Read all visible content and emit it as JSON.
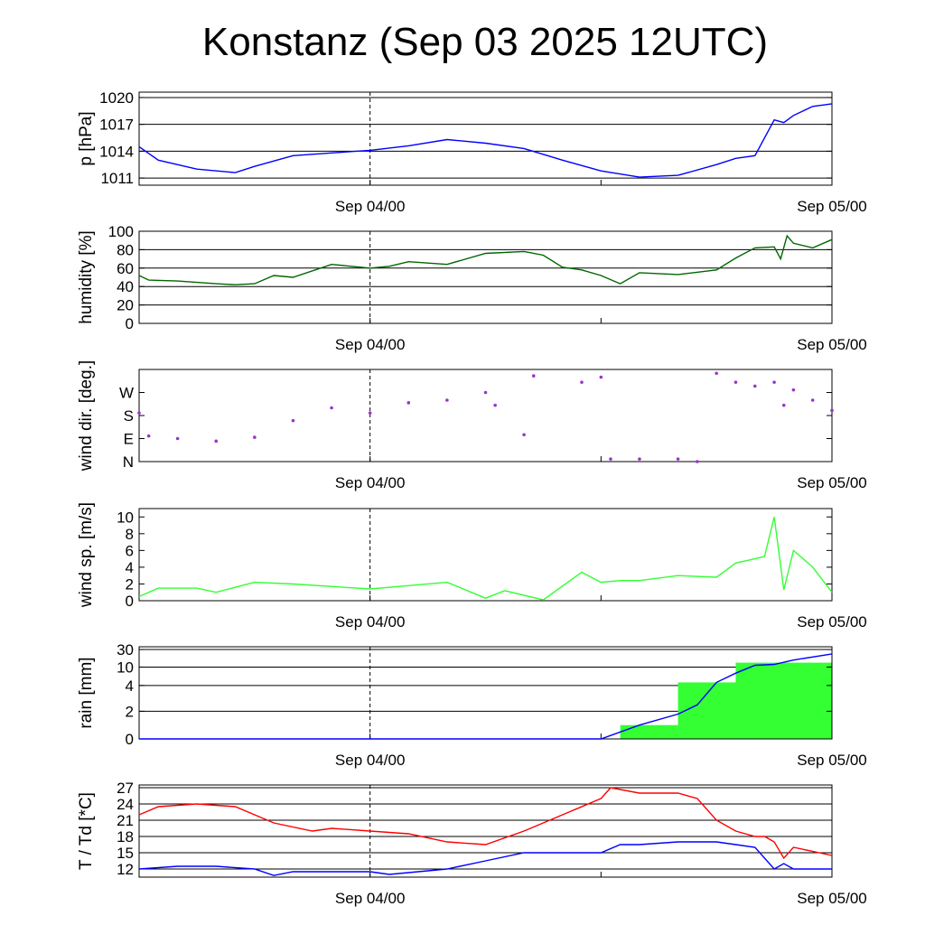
{
  "title": "Konstanz (Sep 03 2025 12UTC)",
  "x_axis": {
    "start": "2025-09-03 12:00",
    "end": "2025-09-05 00:00",
    "tick_labels": [
      "Sep 04/00",
      "Sep 05/00"
    ],
    "tick_times": [
      "2025-09-04 00:00",
      "2025-09-05 00:00"
    ],
    "minor_tick_times": [
      "2025-09-04 12:00"
    ],
    "dashed_line_at": "2025-09-04 00:00"
  },
  "chart_data": [
    {
      "type": "line",
      "id": "pressure",
      "ylabel": "p [hPa]",
      "ylim": [
        1010.2,
        1020.6
      ],
      "yticks": [
        1011,
        1014,
        1017,
        1020
      ],
      "grid": true,
      "series": [
        {
          "color": "#0000ff",
          "x": [
            "2025-09-03 12:00",
            "2025-09-03 13:00",
            "2025-09-03 15:00",
            "2025-09-03 17:00",
            "2025-09-03 18:00",
            "2025-09-03 20:00",
            "2025-09-03 22:00",
            "2025-09-04 00:00",
            "2025-09-04 02:00",
            "2025-09-04 04:00",
            "2025-09-04 06:00",
            "2025-09-04 08:00",
            "2025-09-04 10:00",
            "2025-09-04 12:00",
            "2025-09-04 14:00",
            "2025-09-04 16:00",
            "2025-09-04 18:00",
            "2025-09-04 19:00",
            "2025-09-04 20:00",
            "2025-09-04 21:00",
            "2025-09-04 21:30",
            "2025-09-04 22:00",
            "2025-09-04 23:00",
            "2025-09-05 00:00"
          ],
          "y": [
            1014.5,
            1013.0,
            1012.0,
            1011.6,
            1012.3,
            1013.5,
            1013.8,
            1014.1,
            1014.6,
            1015.3,
            1014.9,
            1014.3,
            1013.0,
            1011.8,
            1011.1,
            1011.3,
            1012.5,
            1013.2,
            1013.5,
            1017.5,
            1017.2,
            1018.0,
            1019.0,
            1019.3
          ]
        }
      ]
    },
    {
      "type": "line",
      "id": "humidity",
      "ylabel": "humidity [%]",
      "ylim": [
        0,
        100
      ],
      "yticks": [
        0,
        20,
        40,
        60,
        80,
        100
      ],
      "grid": true,
      "series": [
        {
          "color": "#006600",
          "x": [
            "2025-09-03 12:00",
            "2025-09-03 12:30",
            "2025-09-03 14:00",
            "2025-09-03 16:00",
            "2025-09-03 17:00",
            "2025-09-03 18:00",
            "2025-09-03 19:00",
            "2025-09-03 20:00",
            "2025-09-03 22:00",
            "2025-09-04 00:00",
            "2025-09-04 01:00",
            "2025-09-04 02:00",
            "2025-09-04 04:00",
            "2025-09-04 06:00",
            "2025-09-04 08:00",
            "2025-09-04 09:00",
            "2025-09-04 10:00",
            "2025-09-04 11:00",
            "2025-09-04 12:00",
            "2025-09-04 13:00",
            "2025-09-04 14:00",
            "2025-09-04 16:00",
            "2025-09-04 18:00",
            "2025-09-04 19:00",
            "2025-09-04 20:00",
            "2025-09-04 21:00",
            "2025-09-04 21:20",
            "2025-09-04 21:40",
            "2025-09-04 22:00",
            "2025-09-04 23:00",
            "2025-09-05 00:00"
          ],
          "y": [
            52,
            47,
            46,
            43,
            42,
            43,
            52,
            50,
            64,
            60,
            62,
            67,
            64,
            76,
            78,
            74,
            61,
            58,
            52,
            43,
            55,
            53,
            58,
            71,
            82,
            83,
            70,
            95,
            87,
            82,
            91
          ]
        }
      ]
    },
    {
      "type": "scatter",
      "id": "wind_direction",
      "ylabel": "wind dir. [deg.]",
      "ylim": [
        0,
        360
      ],
      "yticks": [
        0,
        90,
        180,
        270
      ],
      "ytick_labels": [
        "N",
        "E",
        "S",
        "W"
      ],
      "grid": false,
      "series": [
        {
          "color": "#9933cc",
          "x": [
            "2025-09-03 12:00",
            "2025-09-03 12:30",
            "2025-09-03 14:00",
            "2025-09-03 16:00",
            "2025-09-03 18:00",
            "2025-09-03 20:00",
            "2025-09-03 22:00",
            "2025-09-04 00:00",
            "2025-09-04 02:00",
            "2025-09-04 04:00",
            "2025-09-04 06:00",
            "2025-09-04 06:30",
            "2025-09-04 08:00",
            "2025-09-04 08:30",
            "2025-09-04 11:00",
            "2025-09-04 12:00",
            "2025-09-04 12:30",
            "2025-09-04 14:00",
            "2025-09-04 16:00",
            "2025-09-04 17:00",
            "2025-09-04 18:00",
            "2025-09-04 19:00",
            "2025-09-04 20:00",
            "2025-09-04 21:00",
            "2025-09-04 21:30",
            "2025-09-04 22:00",
            "2025-09-04 23:00",
            "2025-09-05 00:00"
          ],
          "y": [
            190,
            100,
            90,
            80,
            95,
            160,
            210,
            190,
            230,
            240,
            270,
            220,
            105,
            335,
            310,
            330,
            10,
            10,
            10,
            0,
            345,
            310,
            295,
            310,
            220,
            280,
            240,
            200
          ]
        }
      ]
    },
    {
      "type": "line",
      "id": "wind_speed",
      "ylabel": "wind sp. [m/s]",
      "ylim": [
        0,
        11
      ],
      "yticks": [
        0,
        2,
        4,
        6,
        8,
        10
      ],
      "grid": false,
      "series": [
        {
          "color": "#33ff33",
          "x": [
            "2025-09-03 12:00",
            "2025-09-03 13:00",
            "2025-09-03 15:00",
            "2025-09-03 16:00",
            "2025-09-03 18:00",
            "2025-09-03 20:00",
            "2025-09-04 00:00",
            "2025-09-04 02:00",
            "2025-09-04 04:00",
            "2025-09-04 06:00",
            "2025-09-04 07:00",
            "2025-09-04 09:00",
            "2025-09-04 11:00",
            "2025-09-04 12:00",
            "2025-09-04 13:00",
            "2025-09-04 14:00",
            "2025-09-04 16:00",
            "2025-09-04 18:00",
            "2025-09-04 19:00",
            "2025-09-04 20:00",
            "2025-09-04 20:30",
            "2025-09-04 21:00",
            "2025-09-04 21:30",
            "2025-09-04 22:00",
            "2025-09-04 23:00",
            "2025-09-05 00:00"
          ],
          "y": [
            0.5,
            1.5,
            1.5,
            1.0,
            2.2,
            2.0,
            1.4,
            1.8,
            2.2,
            0.3,
            1.2,
            0.1,
            3.4,
            2.2,
            2.4,
            2.4,
            3.0,
            2.8,
            4.5,
            5.0,
            5.3,
            10.0,
            1.3,
            6.0,
            4.0,
            1.0
          ]
        }
      ]
    },
    {
      "type": "area",
      "id": "rain",
      "ylabel": "rain [mm]",
      "ylim": [
        0,
        30
      ],
      "yticks": [
        0,
        2,
        4,
        10,
        30
      ],
      "grid": true,
      "accumulated": {
        "color": "#0000ff",
        "x": [
          "2025-09-03 12:00",
          "2025-09-04 12:00",
          "2025-09-04 14:00",
          "2025-09-04 16:00",
          "2025-09-04 17:00",
          "2025-09-04 18:00",
          "2025-09-04 19:00",
          "2025-09-04 20:00",
          "2025-09-04 21:00",
          "2025-09-04 22:00",
          "2025-09-05 00:00"
        ],
        "y": [
          0,
          0,
          1.0,
          1.8,
          2.5,
          5,
          8,
          12,
          13,
          18,
          25
        ]
      },
      "bars": {
        "color": "#33ff33",
        "x_start": [
          "2025-09-04 13:00",
          "2025-09-04 16:00",
          "2025-09-04 19:00"
        ],
        "x_end": [
          "2025-09-04 16:00",
          "2025-09-04 19:00",
          "2025-09-05 00:00"
        ],
        "y": [
          1,
          5,
          15
        ]
      }
    },
    {
      "type": "line",
      "id": "temperature",
      "ylabel": "T / Td [*C]",
      "ylim": [
        10.5,
        27.5
      ],
      "yticks": [
        12,
        15,
        18,
        21,
        24,
        27
      ],
      "grid": true,
      "series": [
        {
          "color": "#ff0000",
          "x": [
            "2025-09-03 12:00",
            "2025-09-03 13:00",
            "2025-09-03 15:00",
            "2025-09-03 17:00",
            "2025-09-03 19:00",
            "2025-09-03 21:00",
            "2025-09-03 22:00",
            "2025-09-04 00:00",
            "2025-09-04 02:00",
            "2025-09-04 04:00",
            "2025-09-04 06:00",
            "2025-09-04 08:00",
            "2025-09-04 10:00",
            "2025-09-04 12:00",
            "2025-09-04 12:30",
            "2025-09-04 14:00",
            "2025-09-04 16:00",
            "2025-09-04 17:00",
            "2025-09-04 18:00",
            "2025-09-04 19:00",
            "2025-09-04 20:00",
            "2025-09-04 20:30",
            "2025-09-04 21:00",
            "2025-09-04 21:30",
            "2025-09-04 22:00",
            "2025-09-05 00:00"
          ],
          "y": [
            22,
            23.5,
            24,
            23.5,
            20.5,
            19,
            19.5,
            19,
            18.5,
            17,
            16.5,
            19,
            22,
            25,
            27,
            26,
            26,
            25,
            21,
            19,
            18,
            18,
            17,
            14,
            16,
            14.5
          ]
        },
        {
          "color": "#0000ff",
          "x": [
            "2025-09-03 12:00",
            "2025-09-03 14:00",
            "2025-09-03 16:00",
            "2025-09-03 18:00",
            "2025-09-03 19:00",
            "2025-09-03 20:00",
            "2025-09-04 00:00",
            "2025-09-04 01:00",
            "2025-09-04 04:00",
            "2025-09-04 06:00",
            "2025-09-04 08:00",
            "2025-09-04 10:00",
            "2025-09-04 12:00",
            "2025-09-04 13:00",
            "2025-09-04 14:00",
            "2025-09-04 16:00",
            "2025-09-04 18:00",
            "2025-09-04 19:00",
            "2025-09-04 20:00",
            "2025-09-04 21:00",
            "2025-09-04 21:30",
            "2025-09-04 22:00",
            "2025-09-05 00:00"
          ],
          "y": [
            12,
            12.5,
            12.5,
            12,
            10.8,
            11.5,
            11.5,
            11,
            12,
            13.5,
            15,
            15,
            15,
            16.5,
            16.5,
            17,
            17,
            16.5,
            16,
            12,
            13,
            12,
            12
          ]
        }
      ]
    }
  ]
}
